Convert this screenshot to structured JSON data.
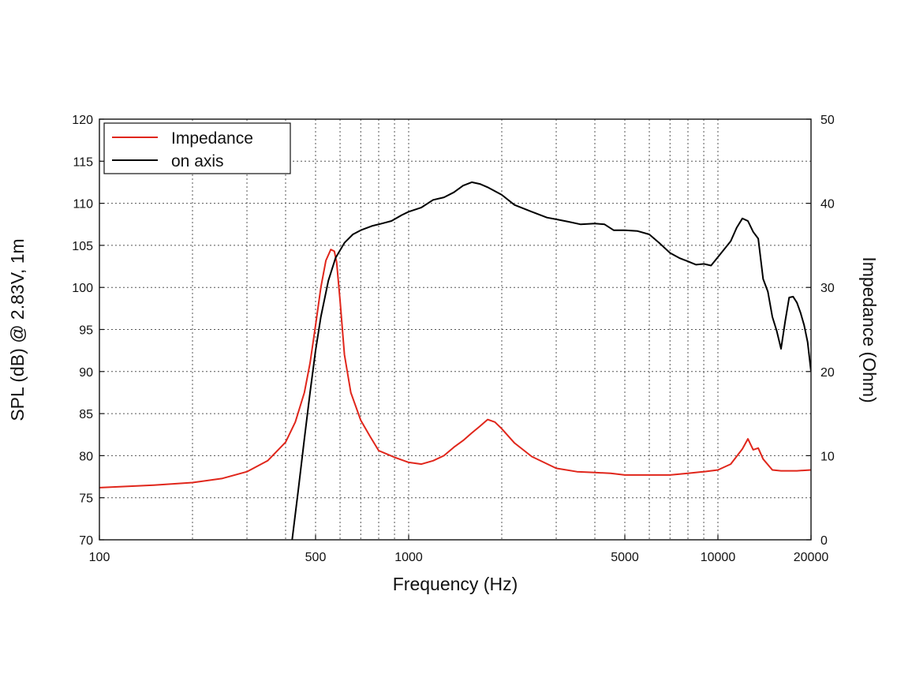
{
  "chart_data": {
    "type": "line",
    "xlabel": "Frequency (Hz)",
    "ylabel": "SPL (dB) @ 2.83V, 1m",
    "ylabel_right": "Impedance (Ohm)",
    "x_scale": "log",
    "xlim": [
      100,
      20000
    ],
    "ylim": [
      70,
      120
    ],
    "ylim_right": [
      0,
      50
    ],
    "x_ticks": [
      100,
      500,
      1000,
      5000,
      10000,
      20000
    ],
    "x_tick_labels": [
      "100",
      "500",
      "1000",
      "5000",
      "10000",
      "20000"
    ],
    "y_ticks": [
      70,
      75,
      80,
      85,
      90,
      95,
      100,
      105,
      110,
      115,
      120
    ],
    "y_tick_labels": [
      "70",
      "75",
      "80",
      "85",
      "90",
      "95",
      "100",
      "105",
      "110",
      "115",
      "120"
    ],
    "y_right_ticks": [
      0,
      10,
      20,
      30,
      40,
      50
    ],
    "y_right_tick_labels": [
      "0",
      "10",
      "20",
      "30",
      "40",
      "50"
    ],
    "grid": true,
    "legend_position": "top-left",
    "series": [
      {
        "name": "Impedance",
        "axis": "right",
        "color": "#e0261b",
        "x": [
          100,
          150,
          200,
          250,
          300,
          350,
          400,
          430,
          460,
          480,
          500,
          520,
          540,
          560,
          575,
          585,
          600,
          620,
          650,
          700,
          750,
          800,
          850,
          900,
          1000,
          1100,
          1200,
          1300,
          1400,
          1500,
          1600,
          1700,
          1800,
          1900,
          2000,
          2200,
          2500,
          3000,
          3500,
          4000,
          4500,
          5000,
          6000,
          7000,
          8000,
          9000,
          10000,
          11000,
          12000,
          12500,
          13000,
          13500,
          14000,
          15000,
          16000,
          18000,
          20000
        ],
        "y": [
          6.2,
          6.5,
          6.8,
          7.3,
          8.1,
          9.4,
          11.6,
          14.0,
          17.5,
          21.0,
          25.5,
          30.0,
          33.2,
          34.5,
          34.3,
          33.0,
          28.5,
          22.0,
          17.5,
          14.2,
          12.3,
          10.6,
          10.2,
          9.8,
          9.2,
          9.0,
          9.4,
          10.0,
          11.0,
          11.8,
          12.7,
          13.5,
          14.3,
          14.0,
          13.2,
          11.5,
          9.9,
          8.5,
          8.1,
          8.0,
          7.9,
          7.7,
          7.7,
          7.7,
          7.9,
          8.1,
          8.3,
          9.0,
          10.8,
          12.0,
          10.7,
          10.9,
          9.6,
          8.3,
          8.2,
          8.2,
          8.3
        ]
      },
      {
        "name": "on axis",
        "axis": "left",
        "color": "#000000",
        "x": [
          420,
          440,
          460,
          480,
          500,
          520,
          550,
          580,
          620,
          660,
          700,
          760,
          820,
          880,
          950,
          1000,
          1100,
          1200,
          1300,
          1400,
          1500,
          1600,
          1700,
          1800,
          2000,
          2200,
          2500,
          2800,
          3000,
          3300,
          3600,
          4000,
          4300,
          4600,
          5000,
          5500,
          6000,
          6500,
          7000,
          7500,
          8000,
          8500,
          9000,
          9500,
          10000,
          11000,
          11500,
          12000,
          12500,
          13000,
          13500,
          14000,
          14500,
          15000,
          15500,
          16000,
          16500,
          17000,
          17500,
          18000,
          18500,
          19000,
          19500,
          20000
        ],
        "y": [
          70.0,
          76.0,
          82.0,
          87.5,
          92.5,
          96.5,
          100.8,
          103.5,
          105.3,
          106.3,
          106.8,
          107.3,
          107.6,
          107.9,
          108.6,
          109.0,
          109.5,
          110.4,
          110.7,
          111.3,
          112.1,
          112.5,
          112.3,
          111.9,
          111.0,
          109.8,
          109.0,
          108.3,
          108.1,
          107.8,
          107.5,
          107.6,
          107.5,
          106.8,
          106.8,
          106.7,
          106.3,
          105.2,
          104.1,
          103.5,
          103.1,
          102.7,
          102.8,
          102.6,
          103.6,
          105.5,
          107.1,
          108.2,
          107.9,
          106.6,
          105.8,
          101.0,
          99.5,
          96.5,
          94.8,
          92.7,
          96.0,
          98.8,
          98.9,
          98.2,
          97.0,
          95.5,
          93.5,
          90.0
        ]
      }
    ]
  }
}
